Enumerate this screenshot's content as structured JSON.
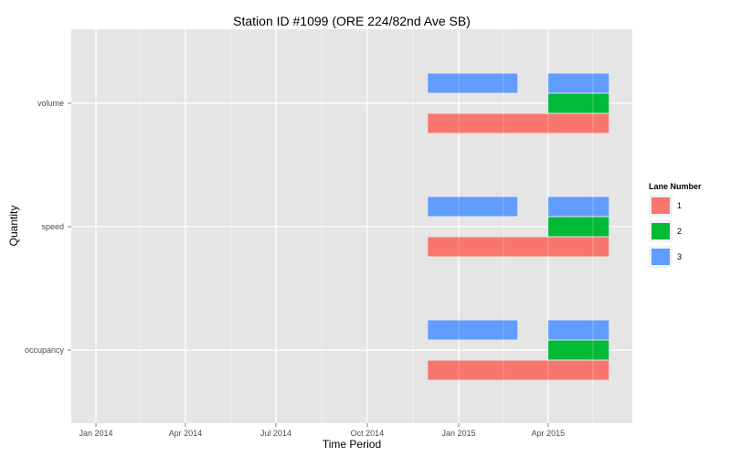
{
  "chart_data": {
    "type": "gantt",
    "title": "Station ID #1099 (ORE 224/82nd Ave SB)",
    "xlabel": "Time Period",
    "ylabel": "Quantity",
    "x_ticks": [
      "Jan 2014",
      "Apr 2014",
      "Jul 2014",
      "Oct 2014",
      "Jan 2015",
      "Apr 2015"
    ],
    "categories": [
      "volume",
      "speed",
      "occupancy"
    ],
    "legend": {
      "title": "Lane Number",
      "position": "right",
      "entries": [
        {
          "label": "1",
          "color": "#F8766D"
        },
        {
          "label": "2",
          "color": "#00BA38"
        },
        {
          "label": "3",
          "color": "#619CFF"
        }
      ]
    },
    "series": [
      {
        "name": "1",
        "color": "#F8766D",
        "ranges": [
          {
            "quantity": "volume",
            "start": "2014-12-01",
            "end": "2015-06-01"
          },
          {
            "quantity": "speed",
            "start": "2014-12-01",
            "end": "2015-06-01"
          },
          {
            "quantity": "occupancy",
            "start": "2014-12-01",
            "end": "2015-06-01"
          }
        ]
      },
      {
        "name": "2",
        "color": "#00BA38",
        "ranges": [
          {
            "quantity": "volume",
            "start": "2015-04-01",
            "end": "2015-06-01"
          },
          {
            "quantity": "speed",
            "start": "2015-04-01",
            "end": "2015-06-01"
          },
          {
            "quantity": "occupancy",
            "start": "2015-04-01",
            "end": "2015-06-01"
          }
        ]
      },
      {
        "name": "3",
        "color": "#619CFF",
        "ranges": [
          {
            "quantity": "volume",
            "start": "2014-12-01",
            "end": "2015-03-01"
          },
          {
            "quantity": "volume",
            "start": "2015-04-01",
            "end": "2015-06-01"
          },
          {
            "quantity": "speed",
            "start": "2014-12-01",
            "end": "2015-03-01"
          },
          {
            "quantity": "speed",
            "start": "2015-04-01",
            "end": "2015-06-01"
          },
          {
            "quantity": "occupancy",
            "start": "2014-12-01",
            "end": "2015-03-01"
          },
          {
            "quantity": "occupancy",
            "start": "2015-04-01",
            "end": "2015-06-01"
          }
        ]
      }
    ],
    "grid": true,
    "background": "#E5E5E5"
  }
}
